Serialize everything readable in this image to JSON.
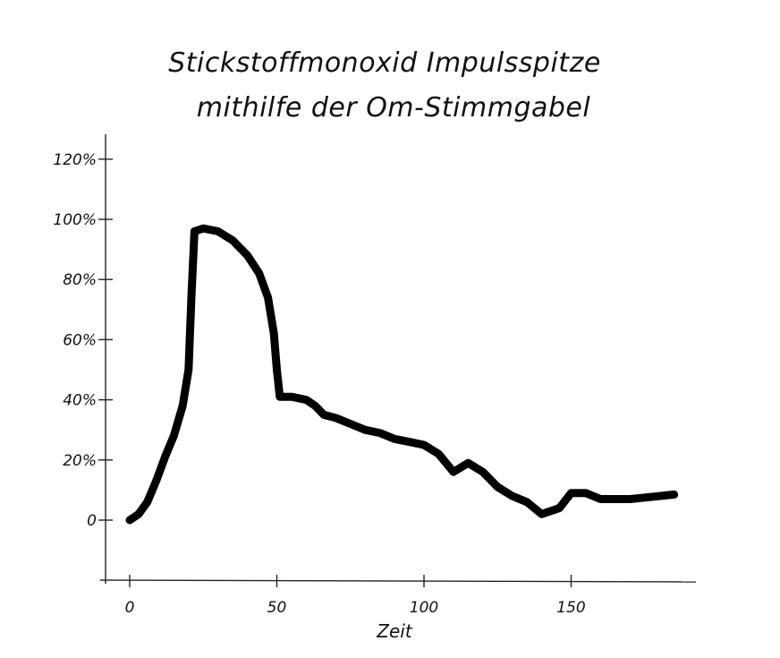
{
  "chart_data": {
    "type": "line",
    "title_lines": [
      "Stickstoffmonoxid Impulsspitze",
      "mithilfe der Om-Stimmgabel"
    ],
    "xlabel": "Zeit",
    "ylabel": "",
    "xlim": [
      0,
      190
    ],
    "ylim": [
      0,
      120
    ],
    "x_ticks": [
      0,
      50,
      100,
      150
    ],
    "x_tick_labels": [
      "0",
      "50",
      "100",
      "150"
    ],
    "y_ticks": [
      0,
      20,
      40,
      60,
      80,
      100,
      120
    ],
    "y_tick_labels": [
      "0",
      "20%",
      "40%",
      "60%",
      "80%",
      "100%",
      "120%"
    ],
    "grid": false,
    "series": [
      {
        "x": [
          0,
          3,
          6,
          9,
          12,
          15,
          18,
          20,
          21,
          22,
          25,
          30,
          35,
          40,
          44,
          47,
          49,
          50,
          51,
          52,
          55,
          60,
          63,
          66,
          70,
          75,
          80,
          85,
          90,
          95,
          100,
          105,
          110,
          115,
          120,
          125,
          130,
          135,
          140,
          143,
          146,
          150,
          155,
          160,
          165,
          170,
          175,
          180,
          185
        ],
        "y": [
          0,
          2,
          6,
          13,
          21,
          28,
          38,
          50,
          75,
          96,
          97,
          96,
          93,
          88,
          82,
          74,
          62,
          50,
          41,
          41,
          41,
          40,
          38,
          35,
          34,
          32,
          30,
          29,
          27,
          26,
          25,
          22,
          16,
          19,
          16,
          11,
          8,
          6,
          2,
          3,
          4,
          9,
          9,
          7,
          7,
          7,
          7.5,
          8,
          8.5
        ]
      }
    ]
  }
}
